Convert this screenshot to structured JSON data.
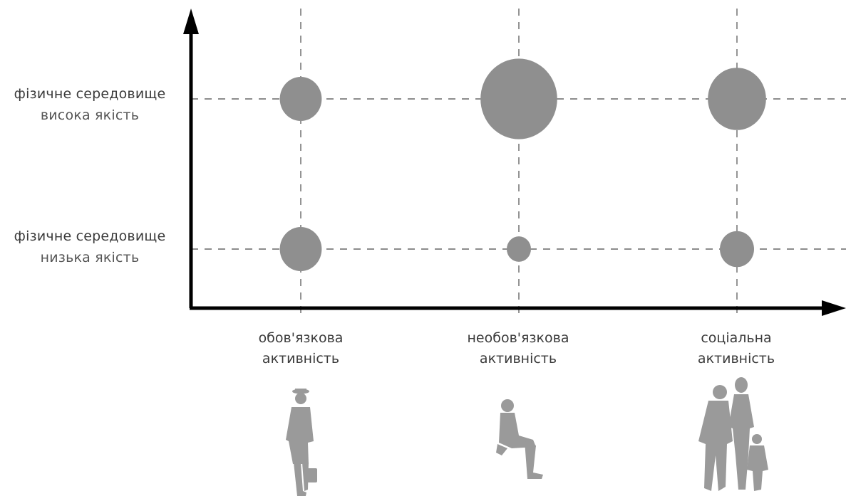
{
  "chart_data": {
    "type": "scatter",
    "x_categories": [
      {
        "line1": "обов'язкова",
        "line2": "активність",
        "icon": "walking-businessman-icon"
      },
      {
        "line1": "необов'язкова",
        "line2": "активність",
        "icon": "seated-person-icon"
      },
      {
        "line1": "соціальна",
        "line2": "активність",
        "icon": "group-of-people-icon"
      }
    ],
    "y_categories": [
      {
        "line1": "фізичне середовище",
        "line2": "низька якість"
      },
      {
        "line1": "фізичне середовище",
        "line2": "висока якість"
      }
    ],
    "points": [
      {
        "x": 0,
        "y": 1,
        "size": 3
      },
      {
        "x": 1,
        "y": 1,
        "size": 10
      },
      {
        "x": 2,
        "y": 1,
        "size": 6
      },
      {
        "x": 0,
        "y": 0,
        "size": 3
      },
      {
        "x": 1,
        "y": 0,
        "size": 1
      },
      {
        "x": 2,
        "y": 0,
        "size": 2
      }
    ],
    "grid": "dashed",
    "bubble_color": "#8f8f8f",
    "axis_color": "#000000",
    "figure_color": "#9a9a9a"
  }
}
